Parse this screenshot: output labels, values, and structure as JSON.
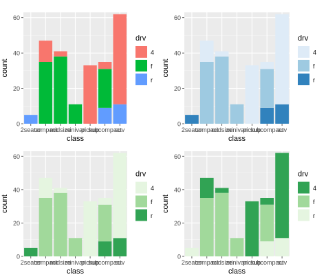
{
  "chart_data": [
    {
      "type": "bar",
      "stacked": true,
      "xlabel": "class",
      "ylabel": "count",
      "ylim": [
        0,
        63
      ],
      "y_ticks": [
        0,
        20,
        40,
        60
      ],
      "categories": [
        "2seater",
        "compact",
        "midsize",
        "minivan",
        "pickup",
        "subcompact",
        "suv"
      ],
      "category_labels": [
        "2seater",
        "compact",
        "midsize",
        "minivan",
        "pickup",
        "subcompact",
        "suv"
      ],
      "stack_order": [
        "r",
        "f",
        "4"
      ],
      "legend_title": "drv",
      "legend_position": "right",
      "grid": true,
      "series": [
        {
          "name": "4",
          "color": "#f8766d",
          "values": [
            0,
            12,
            3,
            0,
            33,
            4,
            51
          ]
        },
        {
          "name": "f",
          "color": "#00ba38",
          "values": [
            0,
            35,
            38,
            11,
            0,
            22,
            0
          ]
        },
        {
          "name": "r",
          "color": "#619cff",
          "values": [
            5,
            0,
            0,
            0,
            0,
            9,
            11
          ]
        }
      ]
    },
    {
      "type": "bar",
      "stacked": true,
      "xlabel": "class",
      "ylabel": "count",
      "ylim": [
        0,
        63
      ],
      "y_ticks": [
        0,
        20,
        40,
        60
      ],
      "categories": [
        "2seater",
        "compact",
        "midsize",
        "minivan",
        "pickup",
        "subcompact",
        "suv"
      ],
      "category_labels": [
        "2seater",
        "compact",
        "midsize",
        "minivan",
        "pickup",
        "subcompact",
        "suv"
      ],
      "stack_order": [
        "r",
        "f",
        "4"
      ],
      "legend_title": "drv",
      "legend_position": "right",
      "grid": true,
      "series": [
        {
          "name": "4",
          "color": "#deebf7",
          "values": [
            0,
            12,
            3,
            0,
            33,
            4,
            51
          ]
        },
        {
          "name": "f",
          "color": "#9ecae1",
          "values": [
            0,
            35,
            38,
            11,
            0,
            22,
            0
          ]
        },
        {
          "name": "r",
          "color": "#3182bd",
          "values": [
            5,
            0,
            0,
            0,
            0,
            9,
            11
          ]
        }
      ]
    },
    {
      "type": "bar",
      "stacked": true,
      "xlabel": "class",
      "ylabel": "count",
      "ylim": [
        0,
        63
      ],
      "y_ticks": [
        0,
        20,
        40,
        60
      ],
      "categories": [
        "2seater",
        "compact",
        "midsize",
        "minivan",
        "pickup",
        "subcompact",
        "suv"
      ],
      "category_labels": [
        "2seater",
        "compact",
        "midsize",
        "minivan",
        "pickup",
        "subcompact",
        "suv"
      ],
      "stack_order": [
        "r",
        "f",
        "4"
      ],
      "legend_title": "drv",
      "legend_position": "right",
      "grid": true,
      "series": [
        {
          "name": "4",
          "color": "#e5f5e0",
          "values": [
            0,
            12,
            3,
            0,
            33,
            4,
            51
          ]
        },
        {
          "name": "f",
          "color": "#a1d99b",
          "values": [
            0,
            35,
            38,
            11,
            0,
            22,
            0
          ]
        },
        {
          "name": "r",
          "color": "#31a354",
          "values": [
            5,
            0,
            0,
            0,
            0,
            9,
            11
          ]
        }
      ]
    },
    {
      "type": "bar",
      "stacked": true,
      "xlabel": "class",
      "ylabel": "count",
      "ylim": [
        0,
        63
      ],
      "y_ticks": [
        0,
        20,
        40,
        60
      ],
      "categories": [
        "2seater",
        "compact",
        "midsize",
        "minivan",
        "pickup",
        "subcompact",
        "suv"
      ],
      "category_labels": [
        "2seater",
        "compact",
        "midsize",
        "minivan",
        "pickup",
        "subcompact",
        "suv"
      ],
      "stack_order": [
        "r",
        "f",
        "4"
      ],
      "legend_title": "drv",
      "legend_position": "right",
      "grid": true,
      "series": [
        {
          "name": "4",
          "color": "#31a354",
          "values": [
            0,
            12,
            3,
            0,
            33,
            4,
            51
          ]
        },
        {
          "name": "f",
          "color": "#a1d99b",
          "values": [
            0,
            35,
            38,
            11,
            0,
            22,
            0
          ]
        },
        {
          "name": "r",
          "color": "#e5f5e0",
          "values": [
            5,
            0,
            0,
            0,
            0,
            9,
            11
          ]
        }
      ]
    }
  ]
}
